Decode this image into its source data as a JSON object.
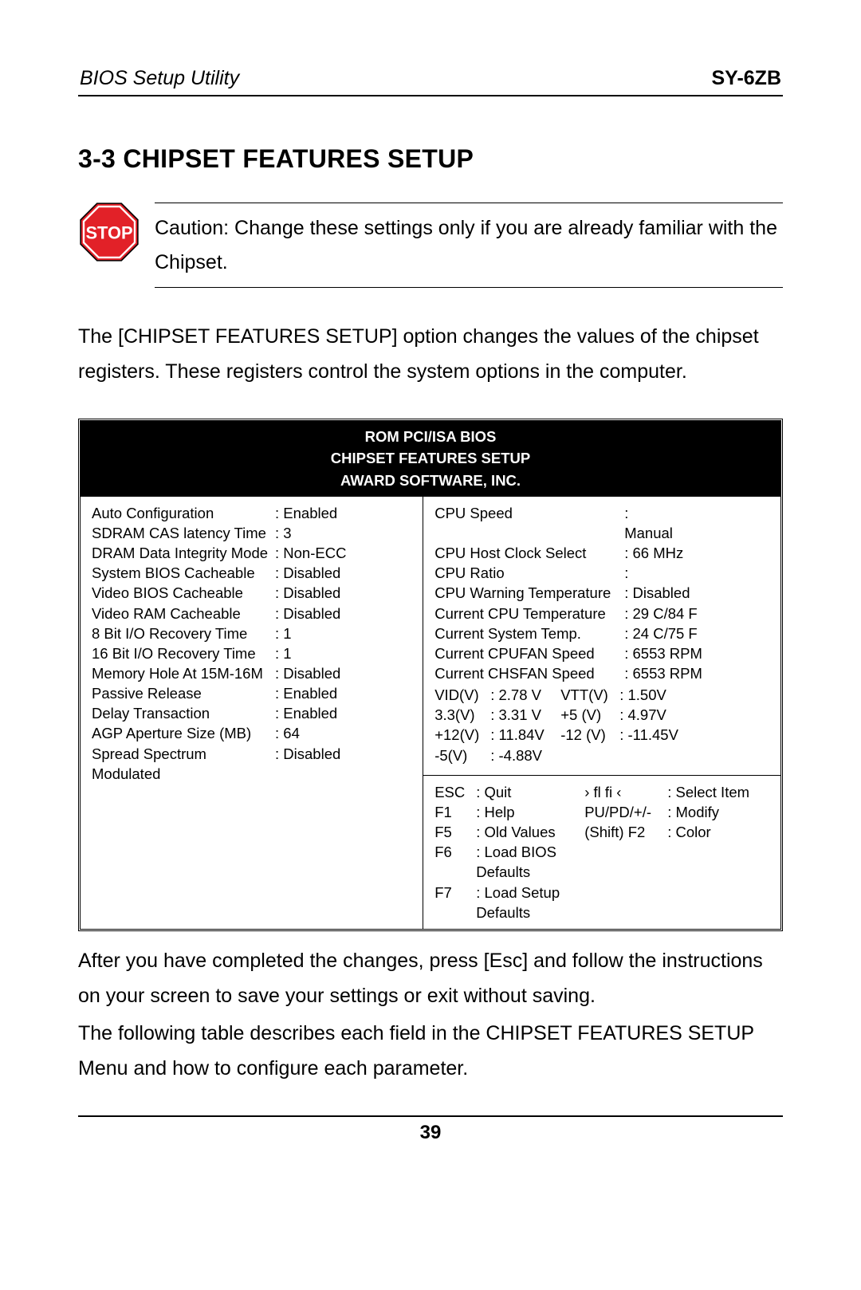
{
  "header": {
    "left": "BIOS Setup Utility",
    "right": "SY-6ZB"
  },
  "section_title": "3-3  CHIPSET FEATURES SETUP",
  "stop": {
    "label": "STOP",
    "octagon_fill": "#e22128",
    "border": "#ffffff",
    "outline": "#000000",
    "text_color": "#ffffff"
  },
  "caution_text": "Caution:  Change these settings only if you are already familiar with the Chipset.",
  "intro_para": "The [CHIPSET FEATURES SETUP] option changes the values of the chipset registers. These registers control the system options in the computer.",
  "bios_header": {
    "l1": "ROM PCI/ISA BIOS",
    "l2": "CHIPSET FEATURES SETUP",
    "l3": "AWARD SOFTWARE, INC."
  },
  "left_settings": [
    {
      "label": "Auto Configuration",
      "value": ": Enabled"
    },
    {
      "label": "SDRAM CAS latency Time",
      "value": ": 3"
    },
    {
      "label": "DRAM Data Integrity Mode",
      "value": ": Non-ECC"
    },
    {
      "label": "System BIOS Cacheable",
      "value": ": Disabled"
    },
    {
      "label": "Video BIOS Cacheable",
      "value": ": Disabled"
    },
    {
      "label": "Video RAM Cacheable",
      "value": ": Disabled"
    },
    {
      "label": "8 Bit I/O Recovery Time",
      "value": ": 1"
    },
    {
      "label": "16 Bit I/O Recovery Time",
      "value": ": 1"
    },
    {
      "label": "Memory Hole At 15M-16M",
      "value": ": Disabled"
    },
    {
      "label": "Passive Release",
      "value": ": Enabled"
    },
    {
      "label": "Delay Transaction",
      "value": ": Enabled"
    },
    {
      "label": "AGP Aperture Size (MB)",
      "value": ": 64"
    },
    {
      "label": "Spread Spectrum Modulated",
      "value": ": Disabled"
    }
  ],
  "right_top": {
    "cpu_speed": {
      "label": "CPU Speed",
      "value": ": Manual"
    },
    "rows": [
      {
        "label": "CPU Host Clock Select",
        "value": ": 66 MHz"
      },
      {
        "label": "CPU Ratio",
        "value": ":"
      },
      {
        "label": "CPU Warning Temperature",
        "value": ": Disabled"
      },
      {
        "label": "Current CPU Temperature",
        "value": ": 29 C/84 F"
      },
      {
        "label": "Current System Temp.",
        "value": ": 24 C/75 F"
      },
      {
        "label": "Current CPUFAN Speed",
        "value": ": 6553 RPM"
      },
      {
        "label": "Current CHSFAN Speed",
        "value": ": 6553 RPM"
      }
    ],
    "voltages": [
      {
        "c1": "VID(V)",
        "c2": ": 2.78 V",
        "c3": "VTT(V)",
        "c4": ": 1.50V"
      },
      {
        "c1": "3.3(V)",
        "c2": ": 3.31 V",
        "c3": "+5 (V)",
        "c4": ": 4.97V"
      },
      {
        "c1": "+12(V)",
        "c2": ": 11.84V",
        "c3": "-12 (V)",
        "c4": ": -11.45V"
      },
      {
        "c1": "-5(V)",
        "c2": ": -4.88V",
        "c3": "",
        "c4": ""
      }
    ]
  },
  "help": [
    {
      "k": "ESC",
      "v": ": Quit",
      "k2": "› ﬂ ﬁ  ‹",
      "v2": ": Select Item"
    },
    {
      "k": "F1",
      "v": ": Help",
      "k2": "PU/PD/+/-",
      "v2": ": Modify"
    },
    {
      "k": "F5",
      "v": ": Old Values",
      "k2": "(Shift) F2",
      "v2": ": Color"
    },
    {
      "k": "F6",
      "v": ": Load BIOS Defaults",
      "k2": "",
      "v2": ""
    },
    {
      "k": "F7",
      "v": ": Load Setup Defaults",
      "k2": "",
      "v2": ""
    }
  ],
  "after_para1": "After you have completed the changes, press [Esc] and follow the instructions on your screen to save your settings or exit without saving.",
  "after_para2": "The following table describes each field in the CHIPSET FEATURES SETUP Menu and how to configure each parameter.",
  "page_number": "39"
}
